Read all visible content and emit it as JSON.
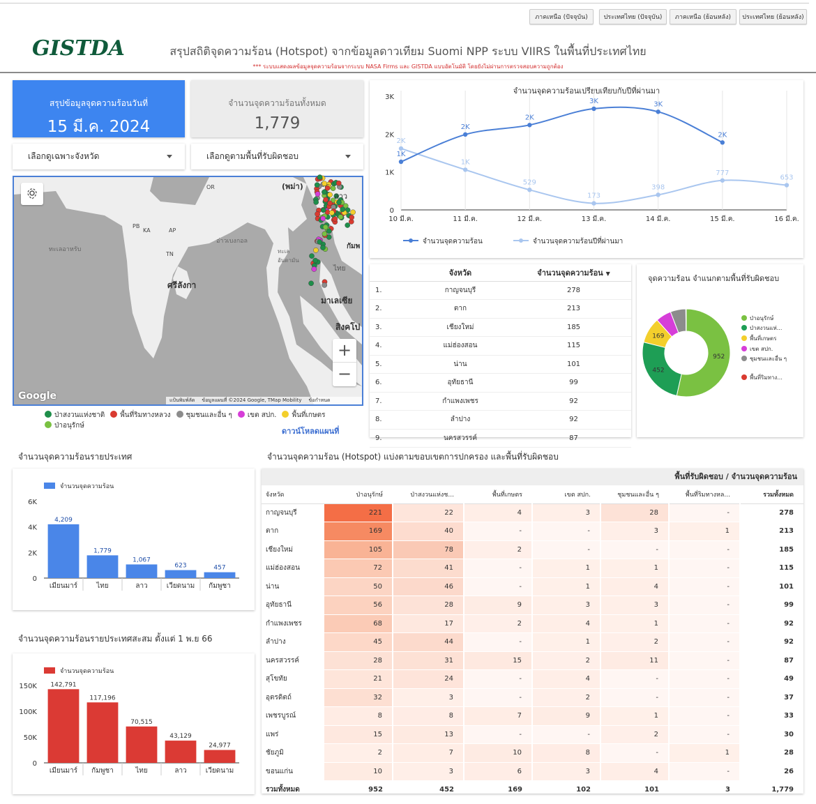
{
  "nav": {
    "buttons": [
      "ภาคเหนือ (ปัจจุบัน)",
      "ประเทศไทย (ปัจจุบัน)",
      "ภาคเหนือ (ย้อนหลัง)",
      "ประเทศไทย (ย้อนหลัง)"
    ]
  },
  "header": {
    "logo_text": "GISTDA",
    "title": "สรุปสถิติจุดความร้อน (Hotspot) จากข้อมูลดาวเทียม Suomi NPP ระบบ VIIRS  ในพื้นที่ประเทศไทย",
    "disclaimer": "*** ระบบแสดงผลข้อมูลจุดความร้อนจากระบบ NASA Firms และ GISTDA แบบอัตโนมัติ โดยยังไม่ผ่านการตรวจสอบความถูกต้อง"
  },
  "summary": {
    "date_label": "สรุปข้อมูลจุดความร้อนวันที่",
    "date_value": "15 มี.ค. 2024",
    "total_label": "จำนวนจุดความร้อนทั้งหมด",
    "total_value": "1,779"
  },
  "filters": {
    "province": "เลือกดูเฉพาะจังหวัด",
    "area": "เลือกดูตามพื้นที่รับผิดชอบ"
  },
  "map": {
    "labels": {
      "myanmar": "(พม่า)",
      "laos": "ลาว",
      "or": "OR",
      "pb": "PB",
      "ka": "KA",
      "ap": "AP",
      "tn": "TN",
      "srilanka": "ศรีลังกา",
      "sea_arabian": "ทะเลอาหรับ",
      "bay_bengal": "อ่าวเบงกอล",
      "andaman": "ทะเลอันดามัน",
      "thai": "ไทย",
      "cambodia": "กัมพ",
      "malaysia": "มาเลเซีย",
      "singapore": "สิงคโป",
      "google": "Google",
      "shortcuts": "แป้นพิมพ์ลัด",
      "attribution": "ข้อมูลแผนที่ ©2024 Google, TMap Mobility",
      "terms": "ข้อกำหนด"
    },
    "zoom_in": "+",
    "zoom_out": "−",
    "legend": [
      {
        "label": "ป่าสงวนแห่งชาติ",
        "color": "#1e8e4a"
      },
      {
        "label": "พื้นที่ริมทางหลวง",
        "color": "#d93b30"
      },
      {
        "label": "ชุมชนและอื่น ๆ",
        "color": "#8c8c8c"
      },
      {
        "label": "เขต สปก.",
        "color": "#d63ed8"
      },
      {
        "label": "พื้นที่เกษตร",
        "color": "#f3cf2c"
      },
      {
        "label": "ป่าอนุรักษ์",
        "color": "#7ac142"
      }
    ],
    "download_label": "ดาวน์โหลดแผนที่"
  },
  "line_chart": {
    "chart_data": {
      "type": "line",
      "title": "จำนวนจุดความร้อนเปรียบเทียบกับปีที่ผ่านมา",
      "x": [
        "10 มี.ค.",
        "11 มี.ค.",
        "12 มี.ค.",
        "13 มี.ค.",
        "14 มี.ค.",
        "15 มี.ค.",
        "16 มี.ค."
      ],
      "y_ticks": [
        "0",
        "1K",
        "2K",
        "3K"
      ],
      "ylim": [
        0,
        3000
      ],
      "series": [
        {
          "name": "จำนวนจุดความร้อน",
          "color": "#4a7fd6",
          "values": [
            1270,
            1990,
            2240,
            2670,
            2590,
            1779,
            null
          ],
          "labels": [
            "1K",
            "2K",
            "2K",
            "3K",
            "3K",
            "2K",
            ""
          ]
        },
        {
          "name": "จำนวนจุดความร้อนปีที่ผ่านมา",
          "color": "#a9c6ef",
          "values": [
            1620,
            1060,
            529,
            173,
            398,
            777,
            653
          ],
          "labels": [
            "2K",
            "1K",
            "529",
            "173",
            "398",
            "777",
            "653"
          ]
        }
      ]
    }
  },
  "province_table": {
    "col_province": "จังหวัด",
    "col_count": "จำนวนจุดความร้อน",
    "rows": [
      {
        "rank": "1.",
        "name": "กาญจนบุรี",
        "count": "278"
      },
      {
        "rank": "2.",
        "name": "ตาก",
        "count": "213"
      },
      {
        "rank": "3.",
        "name": "เชียงใหม่",
        "count": "185"
      },
      {
        "rank": "4.",
        "name": "แม่ฮ่องสอน",
        "count": "115"
      },
      {
        "rank": "5.",
        "name": "น่าน",
        "count": "101"
      },
      {
        "rank": "6.",
        "name": "อุทัยธานี",
        "count": "99"
      },
      {
        "rank": "7.",
        "name": "กำแพงเพชร",
        "count": "92"
      },
      {
        "rank": "8.",
        "name": "ลำปาง",
        "count": "92"
      },
      {
        "rank": "9.",
        "name": "นครสวรรค์",
        "count": "87"
      }
    ]
  },
  "donut_chart": {
    "chart_data": {
      "type": "pie",
      "title": "จุดความร้อน จำแนกตามพื้นที่รับผิดชอบ",
      "slices": [
        {
          "label": "ป่าอนุรักษ์",
          "value": 952,
          "color": "#7ac142",
          "display": "952"
        },
        {
          "label": "ป่าสงวนแห่...",
          "value": 452,
          "color": "#1e9e55",
          "display": "452"
        },
        {
          "label": "พื้นที่เกษตร",
          "value": 169,
          "color": "#f3cf2c",
          "display": "169"
        },
        {
          "label": "เขต สปก.",
          "value": 102,
          "color": "#d63ed8",
          "display": ""
        },
        {
          "label": "ชุมชนและอื่น ๆ",
          "value": 101,
          "color": "#8c8c8c",
          "display": ""
        },
        {
          "label": "พื้นที่ริมทาง...",
          "value": 3,
          "color": "#d93b30",
          "display": ""
        }
      ]
    }
  },
  "country_chart": {
    "title": "จำนวนจุดความร้อนรายประเทศ",
    "chart_data": {
      "type": "bar",
      "categories": [
        "เมียนมาร์",
        "ไทย",
        "ลาว",
        "เวียดนาม",
        "กัมพูชา"
      ],
      "series": [
        {
          "name": "จำนวนจุดความร้อน",
          "values": [
            4209,
            1779,
            1067,
            623,
            457
          ],
          "color": "#4a86e8"
        }
      ],
      "labels": [
        "4,209",
        "1,779",
        "1,067",
        "623",
        "457"
      ],
      "y_ticks": [
        "0",
        "2K",
        "4K",
        "6K"
      ],
      "ylim": [
        0,
        6000
      ]
    }
  },
  "cumulative_chart": {
    "title": "จำนวนจุดความร้อนรายประเทศสะสม ตั้งแต่ 1 พ.ย 66",
    "chart_data": {
      "type": "bar",
      "categories": [
        "เมียนมาร์",
        "กัมพูชา",
        "ไทย",
        "ลาว",
        "เวียดนาม"
      ],
      "series": [
        {
          "name": "จำนวนจุดความร้อน",
          "values": [
            142791,
            117196,
            70515,
            43129,
            24977
          ],
          "color": "#db3a34"
        }
      ],
      "labels": [
        "142,791",
        "117,196",
        "70,515",
        "43,129",
        "24,977"
      ],
      "y_ticks": [
        "0",
        "50K",
        "100K",
        "150K"
      ],
      "ylim": [
        0,
        150000
      ]
    }
  },
  "heatmap": {
    "section_title": "จำนวนจุดความร้อน (Hotspot) แบ่งตามขอบเขตการปกครอง และพื้นที่รับผิดชอบ",
    "group_header": "พื้นที่รับผิดชอบ / จำนวนจุดความร้อน",
    "columns": [
      "จังหวัด",
      "ป่าอนุรักษ์",
      "ป่าสงวนแห่งช...",
      "พื้นที่เกษตร",
      "เขต สปก.",
      "ชุมชนและอื่น ๆ",
      "พื้นที่ริมทางหล...",
      "รวมทั้งหมด"
    ],
    "rows": [
      {
        "name": "กาญจนบุรี",
        "v": [
          221,
          22,
          4,
          3,
          28,
          null
        ],
        "total": "278"
      },
      {
        "name": "ตาก",
        "v": [
          169,
          40,
          null,
          null,
          3,
          1
        ],
        "total": "213"
      },
      {
        "name": "เชียงใหม่",
        "v": [
          105,
          78,
          2,
          null,
          null,
          null
        ],
        "total": "185"
      },
      {
        "name": "แม่ฮ่องสอน",
        "v": [
          72,
          41,
          null,
          1,
          1,
          null
        ],
        "total": "115"
      },
      {
        "name": "น่าน",
        "v": [
          50,
          46,
          null,
          1,
          4,
          null
        ],
        "total": "101"
      },
      {
        "name": "อุทัยธานี",
        "v": [
          56,
          28,
          9,
          3,
          3,
          null
        ],
        "total": "99"
      },
      {
        "name": "กำแพงเพชร",
        "v": [
          68,
          17,
          2,
          4,
          1,
          null
        ],
        "total": "92"
      },
      {
        "name": "ลำปาง",
        "v": [
          45,
          44,
          null,
          1,
          2,
          null
        ],
        "total": "92"
      },
      {
        "name": "นครสวรรค์",
        "v": [
          28,
          31,
          15,
          2,
          11,
          null
        ],
        "total": "87"
      },
      {
        "name": "สุโขทัย",
        "v": [
          21,
          24,
          null,
          4,
          null,
          null
        ],
        "total": "49"
      },
      {
        "name": "อุตรดิตถ์",
        "v": [
          32,
          3,
          null,
          2,
          null,
          null
        ],
        "total": "37"
      },
      {
        "name": "เพชรบูรณ์",
        "v": [
          8,
          8,
          7,
          9,
          1,
          null
        ],
        "total": "33"
      },
      {
        "name": "แพร่",
        "v": [
          15,
          13,
          null,
          null,
          2,
          null
        ],
        "total": "30"
      },
      {
        "name": "ชัยภูมิ",
        "v": [
          2,
          7,
          10,
          8,
          null,
          1
        ],
        "total": "28"
      },
      {
        "name": "ขอนแก่น",
        "v": [
          10,
          3,
          6,
          3,
          4,
          null
        ],
        "total": "26"
      }
    ],
    "totals": {
      "name": "รวมทั้งหมด",
      "v": [
        "952",
        "452",
        "169",
        "102",
        "101",
        "3"
      ],
      "total": "1,779"
    },
    "dash": "-"
  }
}
